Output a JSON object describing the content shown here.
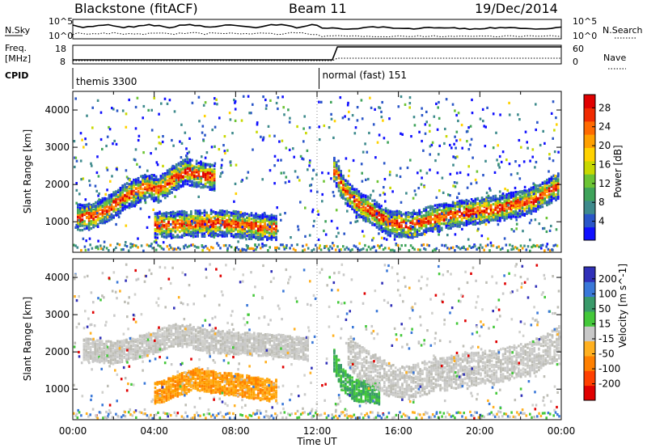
{
  "header": {
    "station": "Blackstone (fitACF)",
    "beam": "Beam 11",
    "date": "19/Dec/2014"
  },
  "top_panels": {
    "nsky_label": "N.Sky",
    "nsearch_label": "N.Search",
    "nsky_ticks": [
      "10^5",
      "10^0"
    ],
    "nsky_right_ticks": [
      "10^5",
      "10^0"
    ],
    "freq_label_1": "Freq.",
    "freq_label_2": "[MHz]",
    "freq_ticks": [
      "18",
      "8"
    ],
    "nave_label": "Nave",
    "nave_ticks": [
      "60",
      "0"
    ],
    "cpid_label": "CPID",
    "cpid_segments": [
      {
        "text": "themis 3300",
        "start_hour": 0,
        "end_hour": 12.1
      },
      {
        "text": "normal (fast) 151",
        "start_hour": 12.1,
        "end_hour": 24
      }
    ]
  },
  "chart_data": [
    {
      "type": "heatmap",
      "title": "",
      "quantity": "Power",
      "ylabel": "Slant Range [km]",
      "xlabel": "Time UT",
      "x_ticks": [
        "00:00",
        "04:00",
        "08:00",
        "12:00",
        "16:00",
        "20:00",
        "00:00"
      ],
      "x_range_hours": [
        0,
        24
      ],
      "y_ticks": [
        1000,
        2000,
        3000,
        4000
      ],
      "ylim": [
        180,
        4500
      ],
      "colorbar": {
        "label": "Power [dB]",
        "ticks": [
          4,
          8,
          12,
          16,
          20,
          24,
          28
        ],
        "colors": [
          "#1010ff",
          "#2a56c8",
          "#3e8a8c",
          "#3fa35a",
          "#6cc434",
          "#c8d800",
          "#ffd200",
          "#ffa000",
          "#ff6a00",
          "#f02a00",
          "#e00000"
        ]
      },
      "features": [
        {
          "name": "band-A",
          "points": [
            [
              0.2,
              1150
            ],
            [
              1.0,
              1180
            ],
            [
              2.0,
              1500
            ],
            [
              2.5,
              1700
            ],
            [
              3.0,
              1820
            ],
            [
              3.6,
              1980
            ],
            [
              4.2,
              1900
            ],
            [
              4.8,
              2150
            ],
            [
              5.5,
              2380
            ],
            [
              7.0,
              2200
            ]
          ]
        },
        {
          "name": "band-B",
          "points": [
            [
              4.0,
              950
            ],
            [
              5.0,
              960
            ],
            [
              6.0,
              980
            ],
            [
              7.0,
              1000
            ],
            [
              8.0,
              960
            ],
            [
              9.0,
              900
            ],
            [
              10.0,
              860
            ]
          ]
        },
        {
          "name": "band-C",
          "points": [
            [
              12.8,
              2400
            ],
            [
              13.3,
              1900
            ],
            [
              14.0,
              1500
            ],
            [
              14.8,
              1250
            ],
            [
              15.5,
              1000
            ],
            [
              16.5,
              930
            ],
            [
              17.5,
              1100
            ],
            [
              19.0,
              1250
            ],
            [
              21.0,
              1400
            ],
            [
              22.5,
              1600
            ],
            [
              23.5,
              1900
            ],
            [
              24.0,
              2050
            ]
          ]
        }
      ]
    },
    {
      "type": "heatmap",
      "title": "",
      "quantity": "Velocity",
      "ylabel": "Slant Range [km]",
      "xlabel": "Time UT",
      "x_ticks": [
        "00:00",
        "04:00",
        "08:00",
        "12:00",
        "16:00",
        "20:00",
        "00:00"
      ],
      "x_range_hours": [
        0,
        24
      ],
      "y_ticks": [
        1000,
        2000,
        3000,
        4000
      ],
      "ylim": [
        180,
        4500
      ],
      "colorbar": {
        "label": "Velocity [m s^-1]",
        "ticks": [
          "200",
          "100",
          "50",
          "15",
          "-15",
          "-50",
          "-100",
          "-200"
        ],
        "colors": [
          "#3030b8",
          "#3a78d8",
          "#3a9a6a",
          "#44c83a",
          "#c8c8c8",
          "#ffb020",
          "#ff8000",
          "#ff4000",
          "#e00000"
        ]
      },
      "features": [
        {
          "name": "grey-ground",
          "points": [
            [
              0.5,
              2100
            ],
            [
              2.0,
              2000
            ],
            [
              3.5,
              2200
            ],
            [
              5.0,
              2500
            ],
            [
              7.0,
              2300
            ],
            [
              10.0,
              2200
            ],
            [
              11.5,
              2100
            ]
          ]
        },
        {
          "name": "orange-flow",
          "points": [
            [
              4.0,
              900
            ],
            [
              5.0,
              1100
            ],
            [
              6.0,
              1300
            ],
            [
              7.0,
              1200
            ],
            [
              8.0,
              1150
            ],
            [
              9.0,
              1050
            ],
            [
              10.0,
              980
            ]
          ]
        },
        {
          "name": "green-flow",
          "points": [
            [
              12.8,
              1800
            ],
            [
              13.2,
              1300
            ],
            [
              13.8,
              1000
            ],
            [
              14.5,
              950
            ],
            [
              15.0,
              900
            ]
          ]
        }
      ]
    }
  ],
  "x_axis_label": "Time UT"
}
